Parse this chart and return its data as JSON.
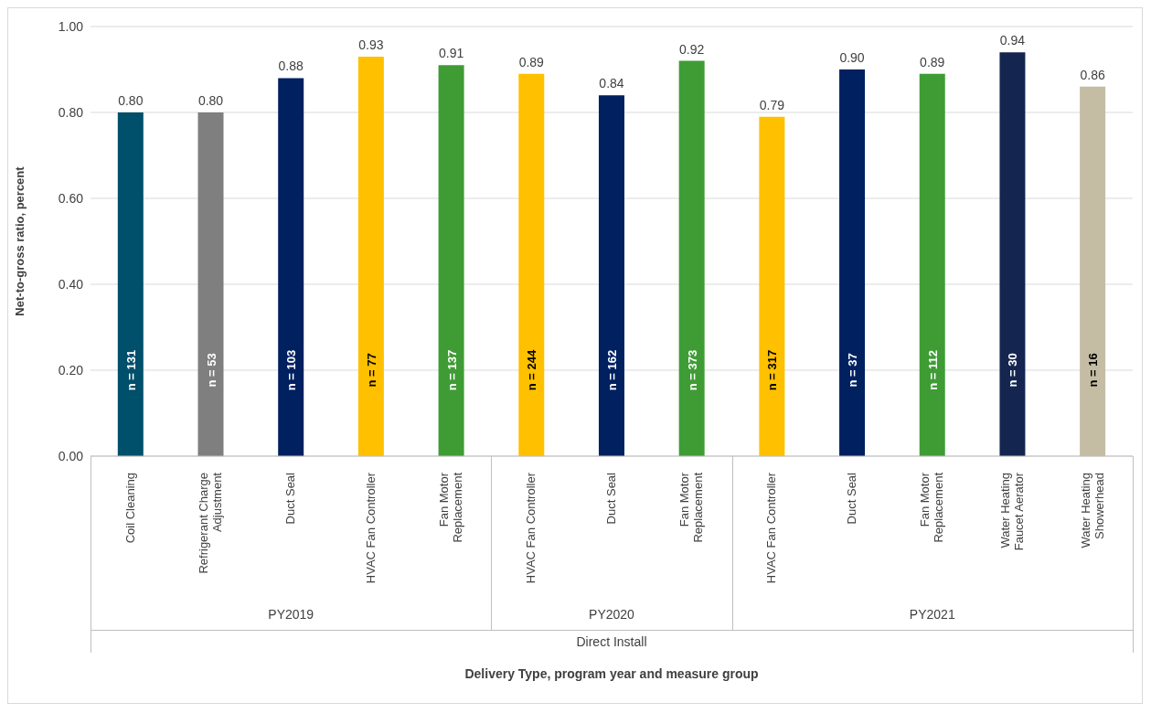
{
  "chart_data": {
    "type": "bar",
    "ylabel": "Net-to-gross ratio, percent",
    "categories": [
      "Coil Cleaning",
      "Refrigerant Charge Adjustment",
      "Duct Seal",
      "HVAC Fan Controller",
      "Fan Motor Replacement",
      "HVAC Fan Controller",
      "Duct Seal",
      "Fan Motor Replacement",
      "HVAC Fan Controller",
      "Duct Seal",
      "Fan Motor Replacement",
      "Water Heating Faucet Aerator",
      "Water Heating Showerhead"
    ],
    "values": [
      0.8,
      0.8,
      0.88,
      0.93,
      0.91,
      0.89,
      0.84,
      0.92,
      0.79,
      0.9,
      0.89,
      0.94,
      0.86
    ],
    "colors": [
      "#004f6b",
      "#7f7f7f",
      "#002060",
      "#ffc000",
      "#3f9c35",
      "#ffc000",
      "#002060",
      "#3f9c35",
      "#ffc000",
      "#002060",
      "#3f9c35",
      "#14254f",
      "#c4bda4"
    ],
    "value_labels": [
      "0.80",
      "0.80",
      "0.88",
      "0.93",
      "0.91",
      "0.89",
      "0.84",
      "0.92",
      "0.79",
      "0.90",
      "0.89",
      "0.94",
      "0.86"
    ],
    "ylim": [
      0,
      1
    ],
    "yticks": [
      {
        "value": 0,
        "label": "0.00"
      },
      {
        "value": 0.2,
        "label": "0.20"
      },
      {
        "value": 0.4,
        "label": "0.40"
      },
      {
        "value": 0.6,
        "label": "0.60"
      },
      {
        "value": 0.8,
        "label": "0.80"
      },
      {
        "value": 1,
        "label": "1.00"
      }
    ],
    "grid": "y",
    "annotations": [
      "n = 131",
      "n = 53",
      "n = 103",
      "n = 77",
      "n = 137",
      "n = 244",
      "n = 162",
      "n = 373",
      "n = 317",
      "n = 37",
      "n = 112",
      "n = 30",
      "n = 16",
      "PY2019",
      "PY2020",
      "PY2021",
      "Direct Install",
      "Delivery Type, program year and measure group"
    ]
  }
}
